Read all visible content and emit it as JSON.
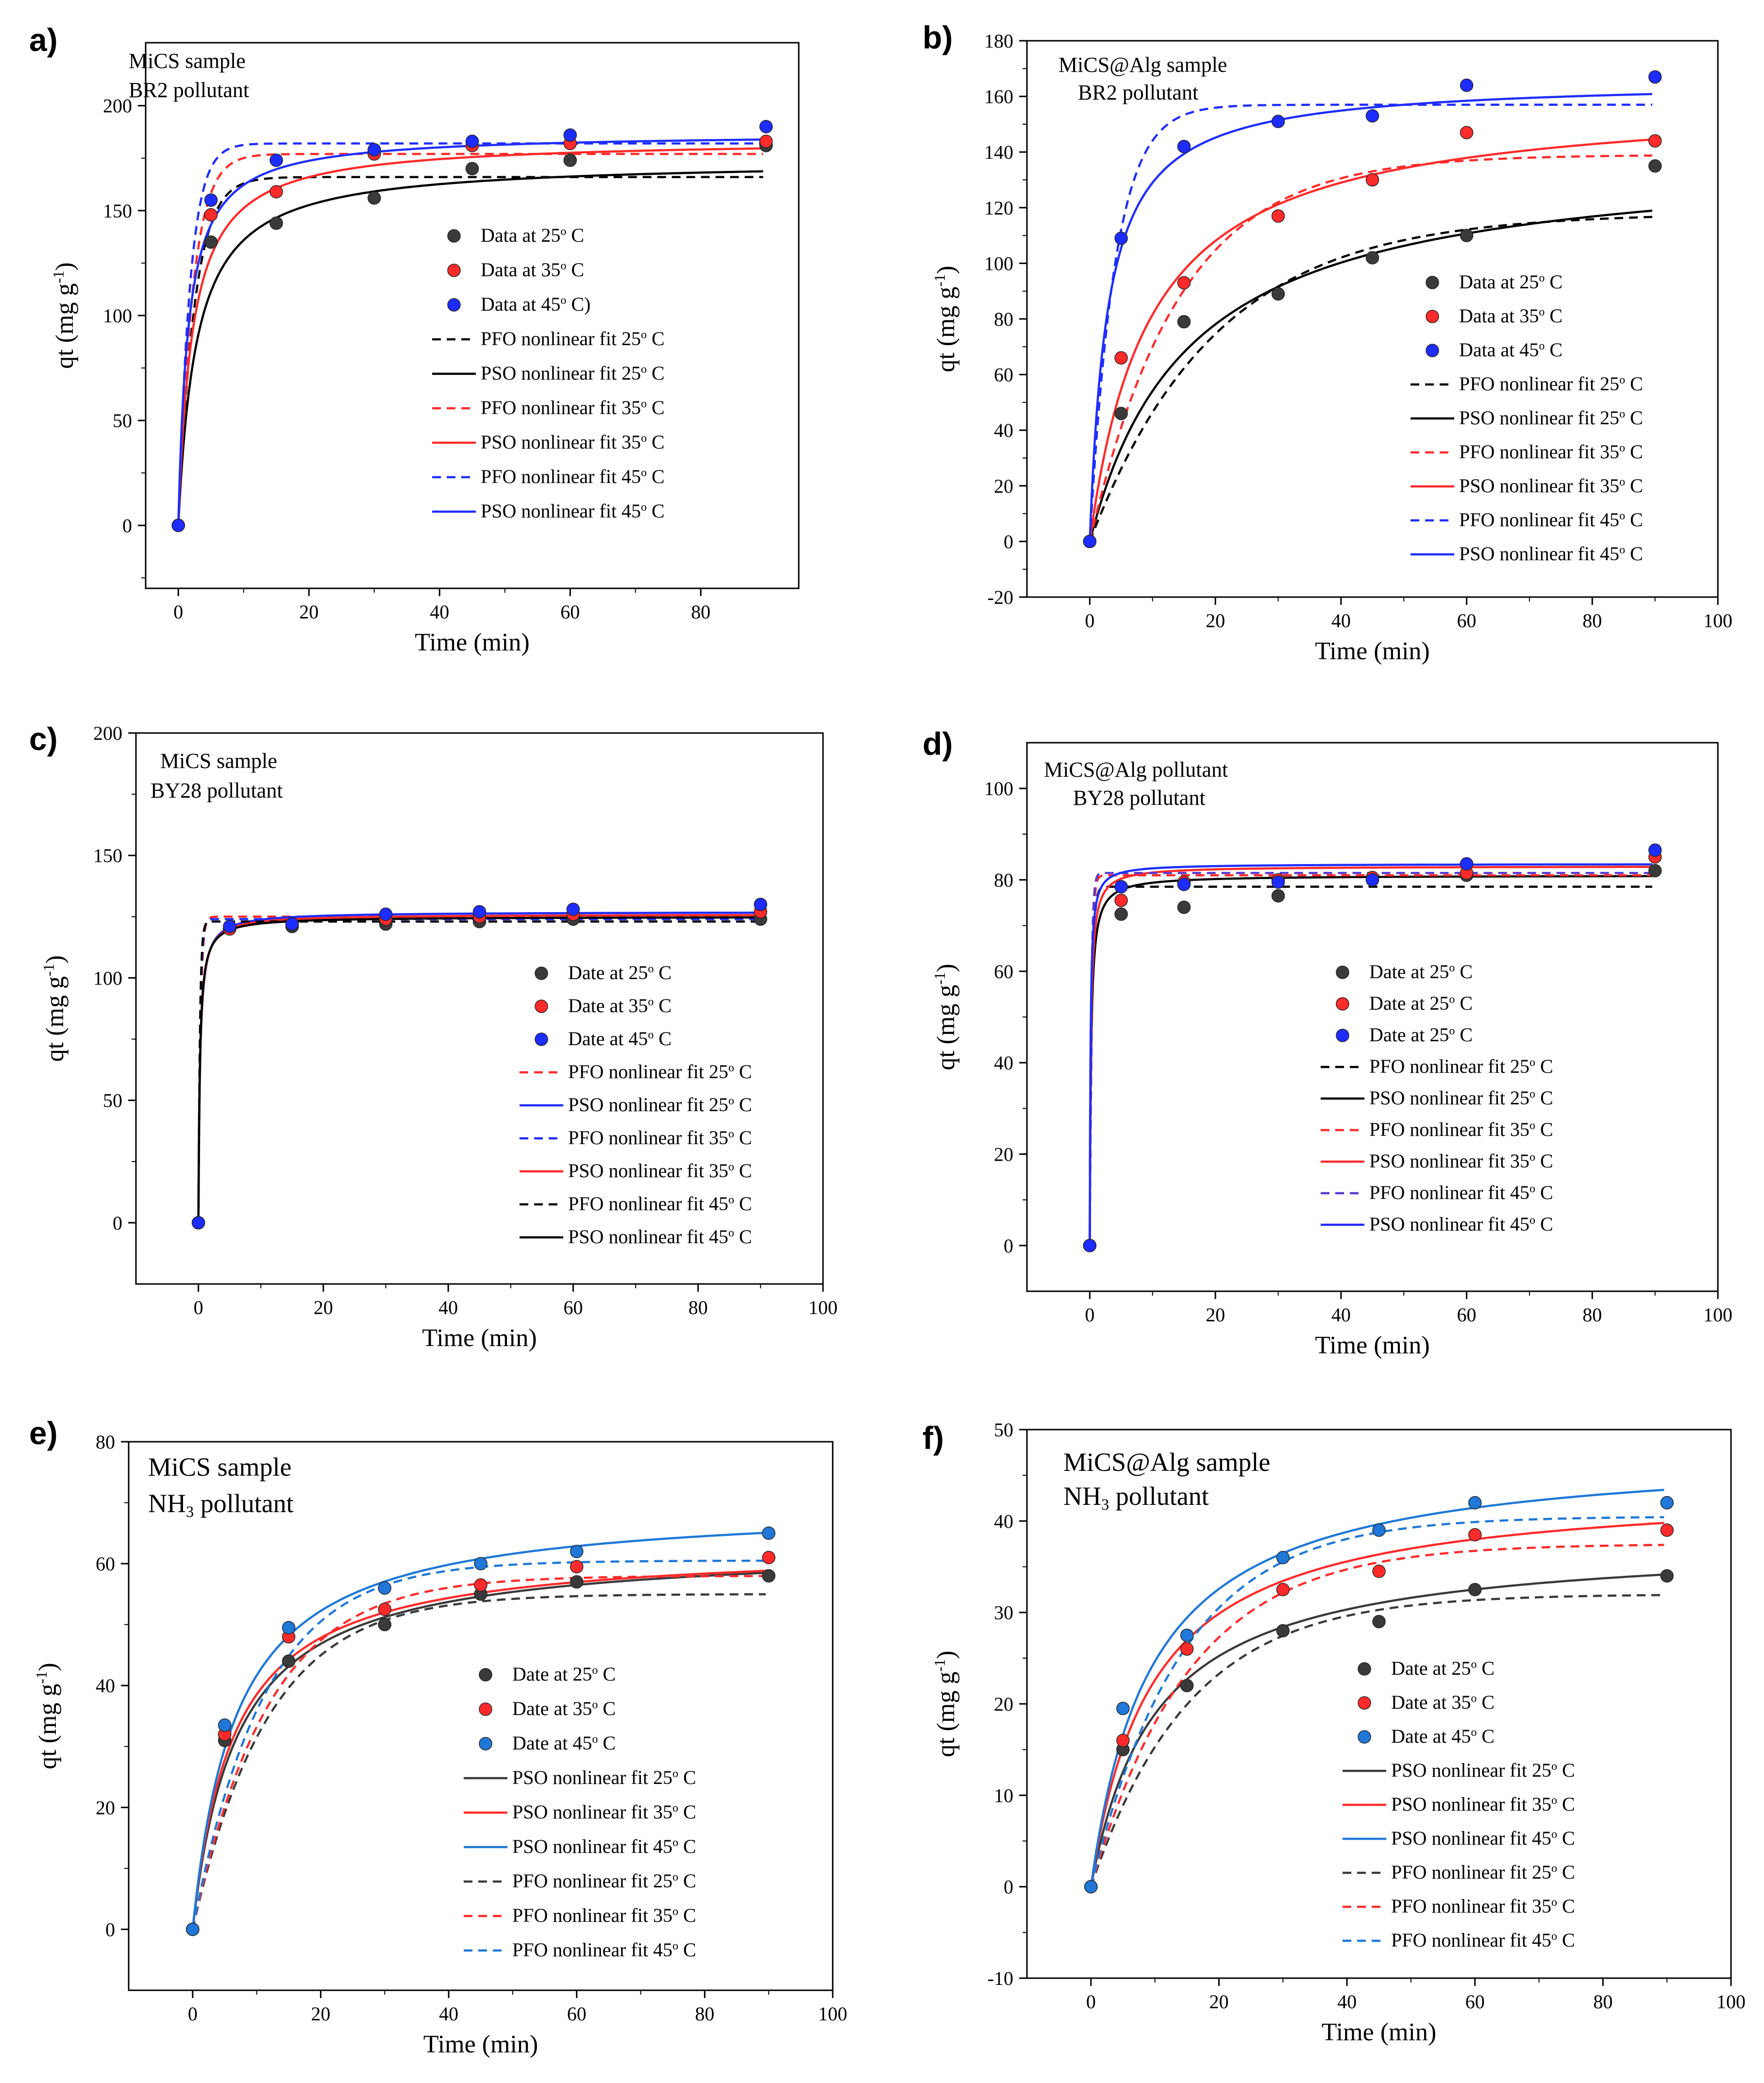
{
  "figure": {
    "colors": {
      "black": "#000000",
      "dark": "#3a3a3a",
      "red": "#ff2a2a",
      "blue": "#1e2dff",
      "blue2": "#1f78d8"
    }
  },
  "chart_data": [
    {
      "letter": "a)",
      "type": "scatter+line",
      "annotation": [
        "MiCS sample",
        "BR2 pollutant"
      ],
      "xlabel": "Time (min)",
      "ylabel": "qt (mg g-1)",
      "xlim": [
        -5,
        95
      ],
      "ylim": [
        -30,
        230
      ],
      "xticks": [
        0,
        20,
        40,
        60,
        80
      ],
      "yticks": [
        0,
        50,
        100,
        150,
        200
      ],
      "x": [
        0,
        5,
        15,
        30,
        45,
        60,
        90
      ],
      "series": [
        {
          "name": "Data at 25° C",
          "kind": "points",
          "color": "#3a3a3a",
          "values": [
            0,
            135,
            144,
            156,
            170,
            174,
            181
          ]
        },
        {
          "name": "Data at 35° C",
          "kind": "points",
          "color": "#ff2a2a",
          "values": [
            0,
            148,
            159,
            177,
            181,
            182,
            183
          ]
        },
        {
          "name": "Data at 45° C)",
          "kind": "points",
          "color": "#1e2dff",
          "values": [
            0,
            155,
            174,
            179,
            183,
            186,
            190
          ]
        },
        {
          "name": "PFO nonlinear fit 25° C",
          "kind": "pfo",
          "color": "#000000",
          "dash": true,
          "qe": 166,
          "k": 0.4
        },
        {
          "name": "PSO nonlinear fit 25° C",
          "kind": "pso",
          "color": "#000000",
          "dash": false,
          "qe": 174,
          "k": 0.00205
        },
        {
          "name": "PFO nonlinear fit 35° C",
          "kind": "pfo",
          "color": "#ff2a2a",
          "dash": true,
          "qe": 177,
          "k": 0.45
        },
        {
          "name": "PSO nonlinear fit 35° C",
          "kind": "pso",
          "color": "#ff2a2a",
          "dash": false,
          "qe": 184,
          "k": 0.0025
        },
        {
          "name": "PFO nonlinear fit 45° C",
          "kind": "pfo",
          "color": "#1e2dff",
          "dash": true,
          "qe": 182,
          "k": 0.55
        },
        {
          "name": "PSO nonlinear fit 45° C",
          "kind": "pso",
          "color": "#1e2dff",
          "dash": false,
          "qe": 187,
          "k": 0.0035
        }
      ]
    },
    {
      "letter": "b)",
      "type": "scatter+line",
      "annotation": [
        "MiCS@Alg sample",
        "BR2 pollutant"
      ],
      "xlabel": "Time (min)",
      "ylabel": "qt (mg g-1)",
      "xlim": [
        -10,
        100
      ],
      "ylim": [
        -20,
        180
      ],
      "xticks": [
        0,
        20,
        40,
        60,
        80,
        100
      ],
      "yticks": [
        -20,
        0,
        20,
        40,
        60,
        80,
        100,
        120,
        140,
        160,
        180
      ],
      "x": [
        0,
        5,
        15,
        30,
        45,
        60,
        90
      ],
      "series": [
        {
          "name": "Data at 25° C",
          "kind": "points",
          "color": "#3a3a3a",
          "values": [
            0,
            46,
            79,
            89,
            102,
            110,
            135
          ]
        },
        {
          "name": "Data at 35° C",
          "kind": "points",
          "color": "#ff2a2a",
          "values": [
            0,
            66,
            93,
            117,
            130,
            147,
            144
          ]
        },
        {
          "name": "Data at 45° C",
          "kind": "points",
          "color": "#1e2dff",
          "values": [
            0,
            109,
            142,
            151,
            153,
            164,
            167
          ]
        },
        {
          "name": "PFO nonlinear fit 25° C",
          "kind": "pfo",
          "color": "#000000",
          "dash": true,
          "qe": 118,
          "k": 0.05
        },
        {
          "name": "PSO nonlinear fit 25° C",
          "kind": "pso",
          "color": "#000000",
          "dash": false,
          "qe": 140,
          "k": 0.00045
        },
        {
          "name": "PFO nonlinear fit 35° C",
          "kind": "pfo",
          "color": "#ff2a2a",
          "dash": true,
          "qe": 139,
          "k": 0.07
        },
        {
          "name": "PSO nonlinear fit 35° C",
          "kind": "pso",
          "color": "#ff2a2a",
          "dash": false,
          "qe": 160,
          "k": 0.00065
        },
        {
          "name": "PFO nonlinear fit 45° C",
          "kind": "pfo",
          "color": "#1e2dff",
          "dash": true,
          "qe": 157,
          "k": 0.25
        },
        {
          "name": "PSO nonlinear fit 45° C",
          "kind": "pso",
          "color": "#1e2dff",
          "dash": false,
          "qe": 166,
          "k": 0.0021
        }
      ]
    },
    {
      "letter": "c)",
      "type": "scatter+line",
      "annotation": [
        "MiCS sample",
        "BY28 pollutant"
      ],
      "xlabel": "Time (min)",
      "ylabel": "qt (mg g-1)",
      "xlim": [
        -10,
        100
      ],
      "ylim": [
        -25,
        200
      ],
      "xticks": [
        0,
        20,
        40,
        60,
        80,
        100
      ],
      "yticks": [
        0,
        50,
        100,
        150,
        200
      ],
      "x": [
        0,
        5,
        15,
        30,
        45,
        60,
        90
      ],
      "series": [
        {
          "name": "Date at 25° C",
          "kind": "points",
          "color": "#3a3a3a",
          "values": [
            0,
            120,
            121,
            122,
            123,
            124,
            124
          ]
        },
        {
          "name": "Date at 35° C",
          "kind": "points",
          "color": "#ff2a2a",
          "values": [
            0,
            120,
            122,
            124,
            125,
            126,
            127
          ]
        },
        {
          "name": "Date at 45° C",
          "kind": "points",
          "color": "#1e2dff",
          "values": [
            0,
            121,
            122,
            126,
            127,
            128,
            130
          ]
        },
        {
          "name": "PFO nonlinear fit 25° C",
          "kind": "pfo",
          "color": "#ff2a2a",
          "dash": true,
          "qe": 125,
          "k": 3.0
        },
        {
          "name": "PSO nonlinear fit 25° C",
          "kind": "pso",
          "color": "#1e2dff",
          "dash": false,
          "qe": 127,
          "k": 0.03
        },
        {
          "name": "PFO nonlinear fit 35° C",
          "kind": "pfo",
          "color": "#1e2dff",
          "dash": true,
          "qe": 124,
          "k": 3.5
        },
        {
          "name": "PSO nonlinear fit 35° C",
          "kind": "pso",
          "color": "#ff2a2a",
          "dash": false,
          "qe": 126,
          "k": 0.032
        },
        {
          "name": "PFO nonlinear fit 45° C",
          "kind": "pfo",
          "color": "#000000",
          "dash": true,
          "qe": 123,
          "k": 4.0
        },
        {
          "name": "PSO nonlinear fit 45° C",
          "kind": "pso",
          "color": "#000000",
          "dash": false,
          "qe": 125,
          "k": 0.035
        }
      ]
    },
    {
      "letter": "d)",
      "type": "scatter+line",
      "annotation": [
        "MiCS@Alg pollutant",
        "BY28 pollutant"
      ],
      "xlabel": "Time (min)",
      "ylabel": "qt (mg g-1)",
      "xlim": [
        -10,
        100
      ],
      "ylim": [
        -10,
        110
      ],
      "xticks": [
        0,
        20,
        40,
        60,
        80,
        100
      ],
      "yticks": [
        0,
        20,
        40,
        60,
        80,
        100
      ],
      "x": [
        0,
        5,
        15,
        30,
        45,
        60,
        90
      ],
      "series": [
        {
          "name": "Date at 25° C",
          "kind": "points",
          "color": "#3a3a3a",
          "values": [
            0,
            72.5,
            74,
            76.5,
            80,
            81,
            82
          ]
        },
        {
          "name": "Date at 25° C",
          "kind": "points",
          "color": "#ff2a2a",
          "values": [
            0,
            75.5,
            79.5,
            80,
            80.5,
            81.5,
            85
          ]
        },
        {
          "name": "Date at 25° C",
          "kind": "points",
          "color": "#1e2dff",
          "values": [
            0,
            78.5,
            79,
            79.5,
            80,
            83.5,
            86.5
          ]
        },
        {
          "name": "PFO nonlinear fit 25° C",
          "kind": "pfo",
          "color": "#000000",
          "dash": true,
          "qe": 78.5,
          "k": 3.0
        },
        {
          "name": "PSO nonlinear fit 25° C",
          "kind": "pso",
          "color": "#000000",
          "dash": false,
          "qe": 81,
          "k": 0.06
        },
        {
          "name": "PFO nonlinear fit 35° C",
          "kind": "pfo",
          "color": "#ff2a2a",
          "dash": true,
          "qe": 81,
          "k": 3.5
        },
        {
          "name": "PSO nonlinear fit 35° C",
          "kind": "pso",
          "color": "#ff2a2a",
          "dash": false,
          "qe": 83,
          "k": 0.07
        },
        {
          "name": "PFO nonlinear fit 45° C",
          "kind": "pfo",
          "color": "#5a3ad0",
          "dash": true,
          "qe": 81.5,
          "k": 4.0
        },
        {
          "name": "PSO nonlinear fit 45° C",
          "kind": "pso",
          "color": "#1e2dff",
          "dash": false,
          "qe": 83.5,
          "k": 0.1
        }
      ]
    },
    {
      "letter": "e)",
      "type": "scatter+line",
      "annotation": [
        "MiCS sample",
        "NH3 pollutant"
      ],
      "xlabel": "Time (min)",
      "ylabel": "qt (mg g-1)",
      "xlim": [
        -10,
        100
      ],
      "ylim": [
        -10,
        80
      ],
      "xticks": [
        0,
        20,
        40,
        60,
        80,
        100
      ],
      "yticks": [
        0,
        20,
        40,
        60,
        80
      ],
      "x": [
        0,
        5,
        15,
        30,
        45,
        60,
        90
      ],
      "series": [
        {
          "name": "Date at 25° C",
          "kind": "points",
          "color": "#3a3a3a",
          "values": [
            0,
            31,
            44,
            50,
            55,
            57,
            58
          ]
        },
        {
          "name": "Date at 35° C",
          "kind": "points",
          "color": "#ff2a2a",
          "values": [
            0,
            32,
            48,
            52.5,
            56.5,
            59.5,
            61
          ]
        },
        {
          "name": "Date at 45° C",
          "kind": "points",
          "color": "#1f78d8",
          "values": [
            0,
            33.5,
            49.5,
            56,
            60,
            62,
            65
          ]
        },
        {
          "name": "PSO nonlinear fit 25° C",
          "kind": "pso",
          "color": "#3a3a3a",
          "dash": false,
          "qe": 63,
          "k": 0.0023
        },
        {
          "name": "PSO nonlinear fit 35° C",
          "kind": "pso",
          "color": "#ff2a2a",
          "dash": false,
          "qe": 63,
          "k": 0.0025
        },
        {
          "name": "PSO nonlinear fit 45° C",
          "kind": "pso",
          "color": "#1f78d8",
          "dash": false,
          "qe": 70,
          "k": 0.0021
        },
        {
          "name": "PFO nonlinear fit 25° C",
          "kind": "pfo",
          "color": "#3a3a3a",
          "dash": true,
          "qe": 55,
          "k": 0.085
        },
        {
          "name": "PFO nonlinear fit 35° C",
          "kind": "pfo",
          "color": "#ff2a2a",
          "dash": true,
          "qe": 58,
          "k": 0.085
        },
        {
          "name": "PFO nonlinear fit 45° C",
          "kind": "pfo",
          "color": "#1f78d8",
          "dash": true,
          "qe": 60.5,
          "k": 0.09
        }
      ]
    },
    {
      "letter": "f)",
      "type": "scatter+line",
      "annotation": [
        "MiCS@Alg sample",
        "NH3 pollutant"
      ],
      "xlabel": "Time (min)",
      "ylabel": "qt (mg g-1)",
      "xlim": [
        -10,
        100
      ],
      "ylim": [
        -10,
        50
      ],
      "xticks": [
        0,
        20,
        40,
        60,
        80,
        100
      ],
      "yticks": [
        -10,
        0,
        10,
        20,
        30,
        40,
        50
      ],
      "x": [
        0,
        5,
        15,
        30,
        45,
        60,
        90
      ],
      "series": [
        {
          "name": "Date at 25° C",
          "kind": "points",
          "color": "#3a3a3a",
          "values": [
            0,
            15,
            22,
            28,
            29,
            32.5,
            34
          ]
        },
        {
          "name": "Date at 35° C",
          "kind": "points",
          "color": "#ff2a2a",
          "values": [
            0,
            16,
            26,
            32.5,
            34.5,
            38.5,
            39
          ]
        },
        {
          "name": "Date at 45° C",
          "kind": "points",
          "color": "#1f78d8",
          "values": [
            0,
            19.5,
            27.5,
            36,
            39,
            42,
            42
          ]
        },
        {
          "name": "PSO nonlinear fit 25° C",
          "kind": "pso",
          "color": "#3a3a3a",
          "dash": false,
          "qe": 38,
          "k": 0.0026
        },
        {
          "name": "PSO nonlinear fit 35° C",
          "kind": "pso",
          "color": "#ff2a2a",
          "dash": false,
          "qe": 44,
          "k": 0.0024
        },
        {
          "name": "PSO nonlinear fit 45° C",
          "kind": "pso",
          "color": "#1f78d8",
          "dash": false,
          "qe": 48,
          "k": 0.0022
        },
        {
          "name": "PFO nonlinear fit 25° C",
          "kind": "pfo",
          "color": "#3a3a3a",
          "dash": true,
          "qe": 32,
          "k": 0.065
        },
        {
          "name": "PFO nonlinear fit 35° C",
          "kind": "pfo",
          "color": "#ff2a2a",
          "dash": true,
          "qe": 37.5,
          "k": 0.065
        },
        {
          "name": "PFO nonlinear fit 45° C",
          "kind": "pfo",
          "color": "#1f78d8",
          "dash": true,
          "qe": 40.5,
          "k": 0.07
        }
      ]
    }
  ]
}
